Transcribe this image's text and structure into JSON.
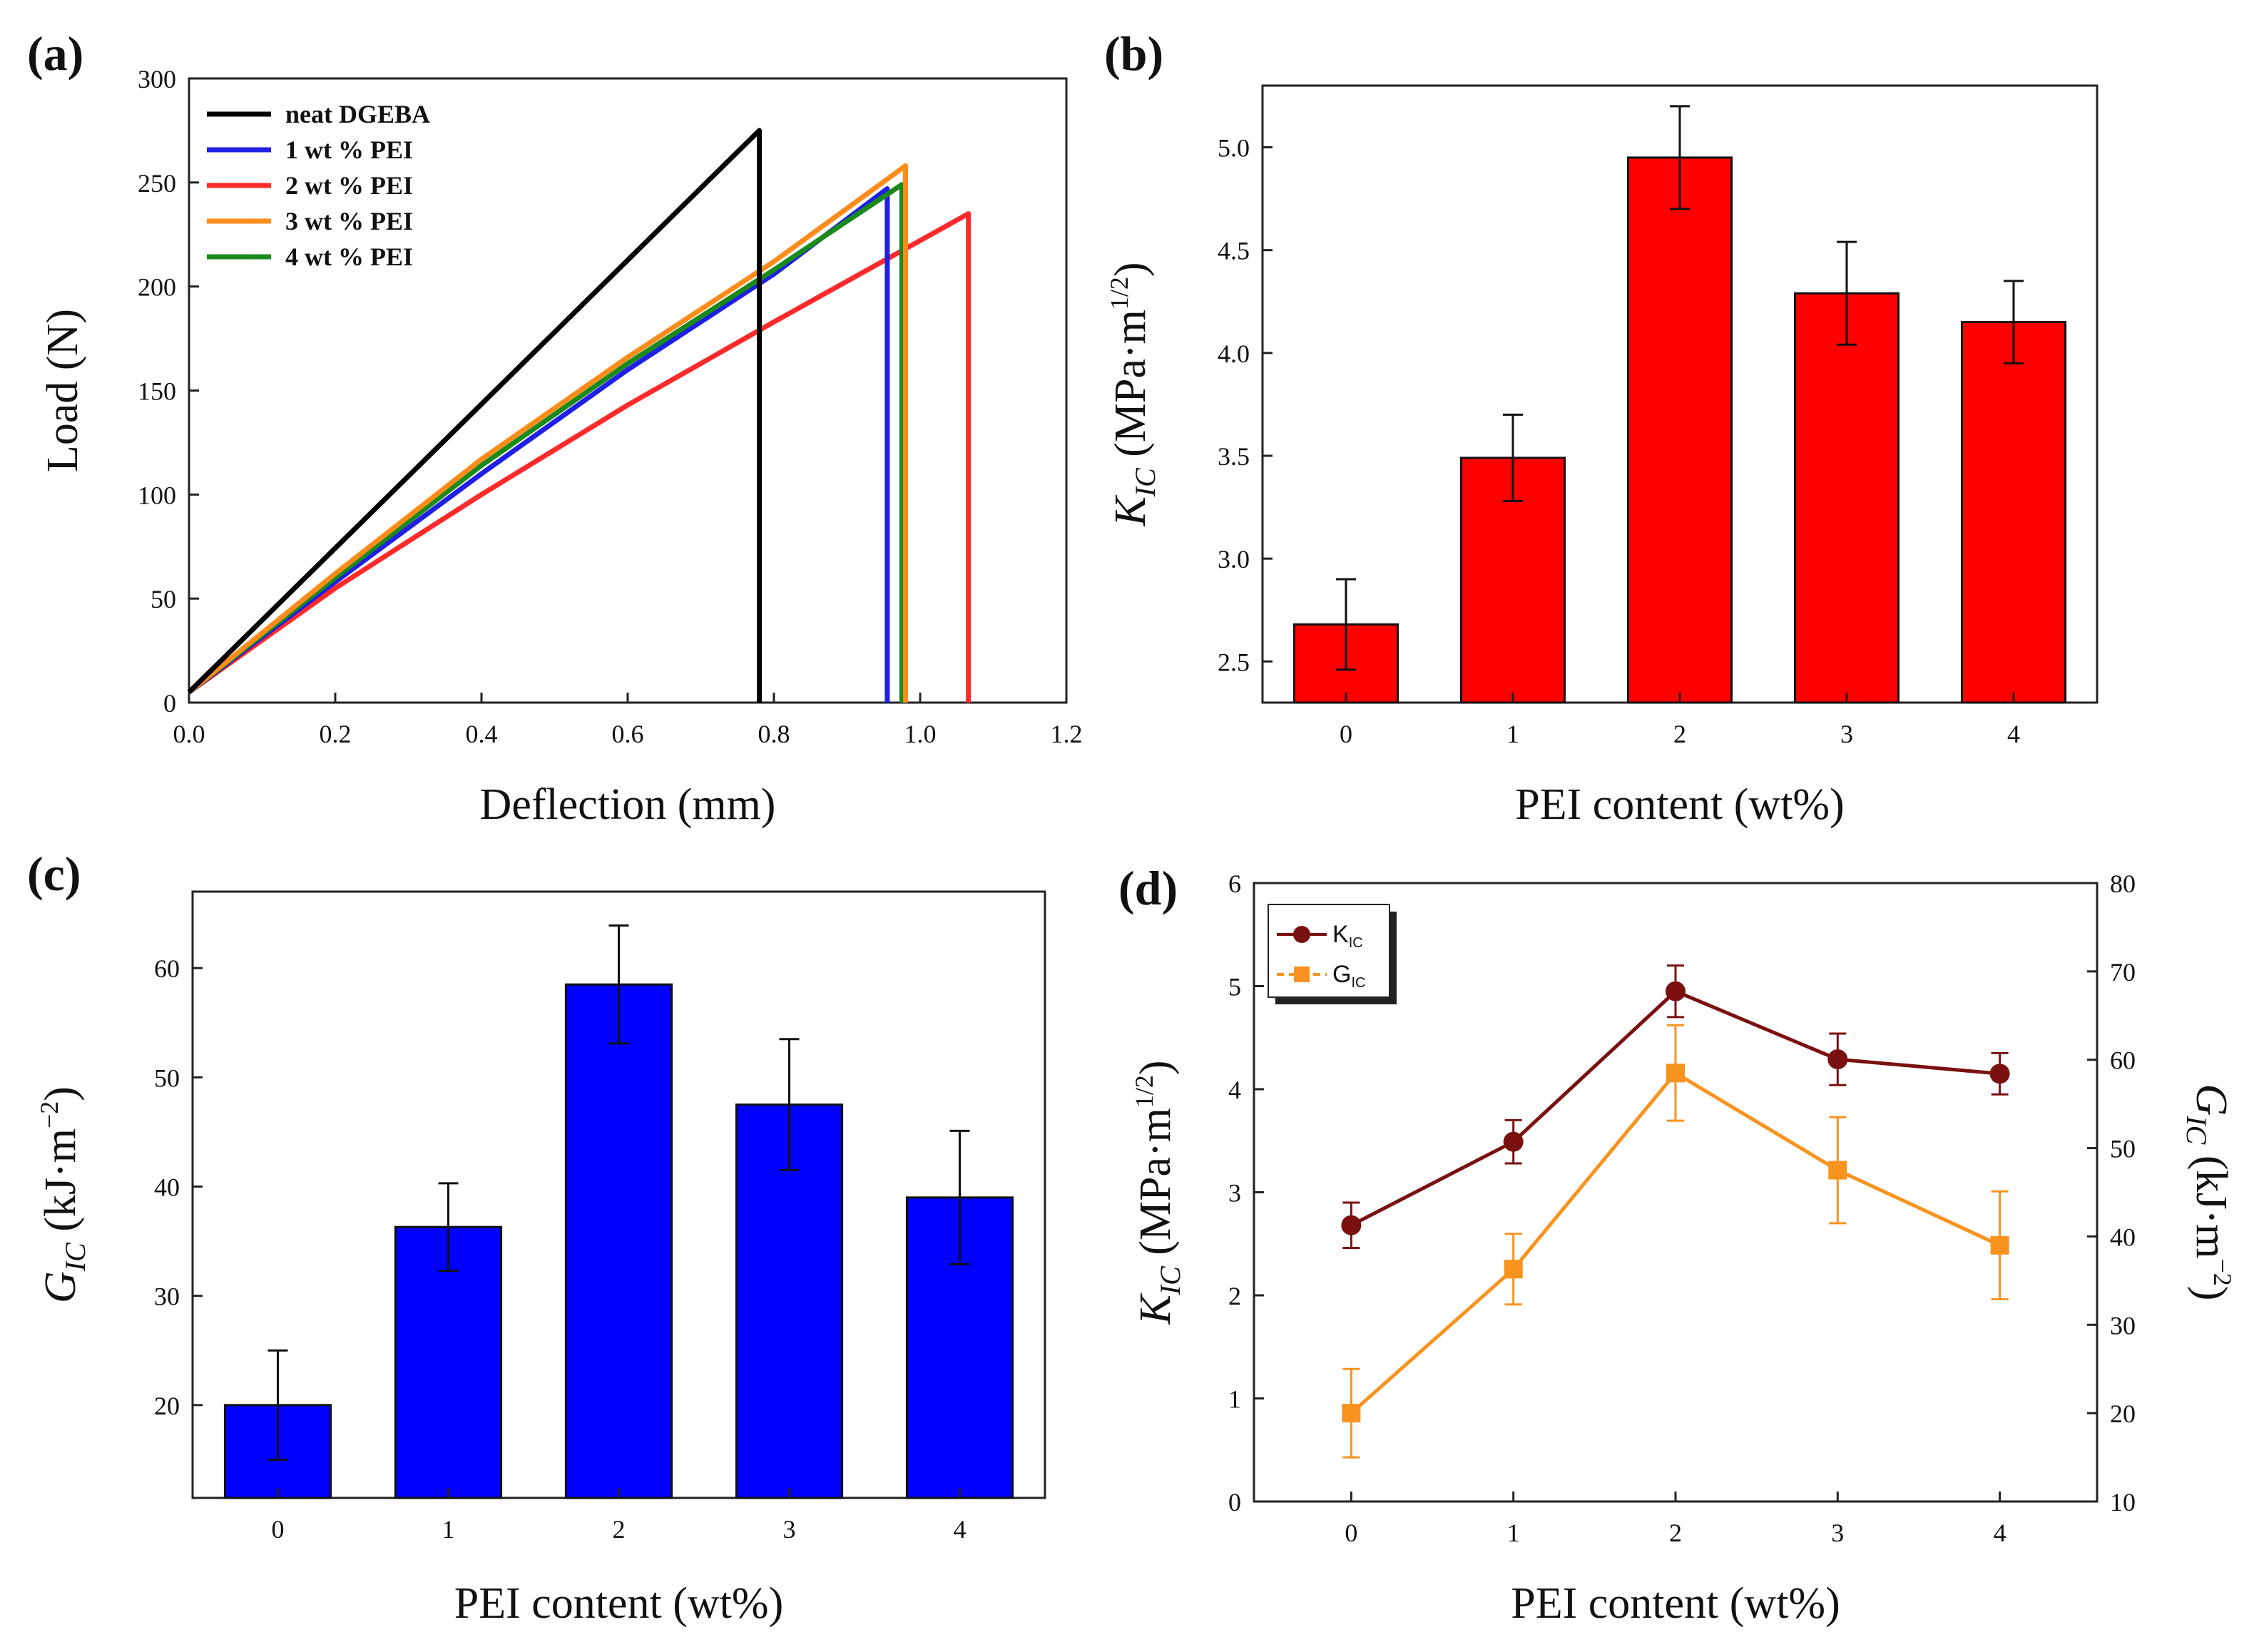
{
  "chart_data": [
    {
      "panel": "(a)",
      "type": "line",
      "xlabel": "Deflection (mm)",
      "ylabel": "Load (N)",
      "xlim": [
        0,
        1.2
      ],
      "ylim": [
        0,
        300
      ],
      "xticks": [
        "0.0",
        "0.2",
        "0.4",
        "0.6",
        "0.8",
        "1.0",
        "1.2"
      ],
      "yticks": [
        "0",
        "50",
        "100",
        "150",
        "200",
        "250",
        "300"
      ],
      "legend_position": "top-left",
      "series": [
        {
          "name": "neat DGEBA",
          "color": "#000000",
          "x": [
            0,
            0.78,
            0.78
          ],
          "y": [
            5,
            275,
            0
          ]
        },
        {
          "name": "1 wt % PEI",
          "color": "#1f1fe6",
          "x": [
            0,
            0.2,
            0.4,
            0.6,
            0.8,
            0.955,
            0.955
          ],
          "y": [
            5,
            58,
            110,
            160,
            206,
            247,
            0
          ]
        },
        {
          "name": "2 wt % PEI",
          "color": "#ff2a2a",
          "x": [
            0,
            0.2,
            0.4,
            0.6,
            0.8,
            1.066,
            1.066
          ],
          "y": [
            5,
            55,
            100,
            143,
            183,
            235,
            0
          ]
        },
        {
          "name": "3 wt % PEI",
          "color": "#ff8c1a",
          "x": [
            0,
            0.2,
            0.4,
            0.6,
            0.8,
            0.98,
            0.98
          ],
          "y": [
            5,
            62,
            117,
            166,
            212,
            258,
            0
          ]
        },
        {
          "name": "4 wt % PEI",
          "color": "#1a8a1a",
          "x": [
            0,
            0.2,
            0.4,
            0.6,
            0.8,
            0.975,
            0.975
          ],
          "y": [
            5,
            60,
            114,
            163,
            208,
            249,
            0
          ]
        }
      ]
    },
    {
      "panel": "(b)",
      "type": "bar",
      "xlabel": "PEI content (wt%)",
      "ylabel": "K_IC (MPa·m^1/2)",
      "ylabel_main": "K",
      "ylabel_sub": "IC",
      "ylabel_unit": " (MPa·m",
      "ylabel_sup": "1/2",
      "ylabel_close": ")",
      "categories": [
        "0",
        "1",
        "2",
        "3",
        "4"
      ],
      "values": [
        2.68,
        3.49,
        4.95,
        4.29,
        4.15
      ],
      "errors": [
        0.22,
        0.21,
        0.25,
        0.25,
        0.2
      ],
      "ylim": [
        2.3,
        5.3
      ],
      "yticks": [
        "2.5",
        "3.0",
        "3.5",
        "4.0",
        "4.5",
        "5.0"
      ],
      "bar_color": "#ff0000"
    },
    {
      "panel": "(c)",
      "type": "bar",
      "xlabel": "PEI content (wt%)",
      "ylabel": "G_IC (kJ·m^−2)",
      "ylabel_main": "G",
      "ylabel_sub": "IC",
      "ylabel_unit": " (kJ·m",
      "ylabel_sup": "−2",
      "ylabel_close": ")",
      "categories": [
        "0",
        "1",
        "2",
        "3",
        "4"
      ],
      "values": [
        20.0,
        36.3,
        58.5,
        47.5,
        39.0
      ],
      "errors": [
        5.0,
        4.0,
        5.4,
        6.0,
        6.1
      ],
      "ylim": [
        11.5,
        67
      ],
      "yticks": [
        "20",
        "30",
        "40",
        "50",
        "60"
      ],
      "bar_color": "#0000ff"
    },
    {
      "panel": "(d)",
      "type": "line",
      "xlabel": "PEI content (wt%)",
      "ylabel_left": "K_IC (MPa·m^1/2)",
      "ylabel_left_main": "K",
      "ylabel_left_sub": "IC",
      "ylabel_left_unit": " (MPa·m",
      "ylabel_left_sup": "1/2",
      "ylabel_left_close": ")",
      "ylabel_right": "G_IC (kJ·m^−2)",
      "ylabel_right_main": "G",
      "ylabel_right_sub": "IC",
      "ylabel_right_unit": " (kJ·m",
      "ylabel_right_sup": "−2",
      "ylabel_right_close": ")",
      "x": [
        0,
        1,
        2,
        3,
        4
      ],
      "xticks": [
        "0",
        "1",
        "2",
        "3",
        "4"
      ],
      "xlim": [
        -0.6,
        4.6
      ],
      "ylim_left": [
        0,
        6
      ],
      "yticks_left": [
        "0",
        "1",
        "2",
        "3",
        "4",
        "5",
        "6"
      ],
      "ylim_right": [
        10,
        80
      ],
      "yticks_right": [
        "10",
        "20",
        "30",
        "40",
        "50",
        "60",
        "70",
        "80"
      ],
      "legend_position": "top-left",
      "series": [
        {
          "name": "K_IC",
          "label_main": "K",
          "label_sub": "IC",
          "axis": "left",
          "marker": "circle",
          "color": "#7a1010",
          "values": [
            2.68,
            3.49,
            4.95,
            4.29,
            4.15
          ],
          "errors": [
            0.22,
            0.21,
            0.25,
            0.25,
            0.2
          ]
        },
        {
          "name": "G_IC",
          "label_main": "G",
          "label_sub": "IC",
          "axis": "right",
          "marker": "square",
          "color": "#f7931e",
          "values": [
            20.0,
            36.3,
            58.5,
            47.5,
            39.0
          ],
          "errors": [
            5.0,
            4.0,
            5.4,
            6.0,
            6.1
          ]
        }
      ]
    }
  ]
}
